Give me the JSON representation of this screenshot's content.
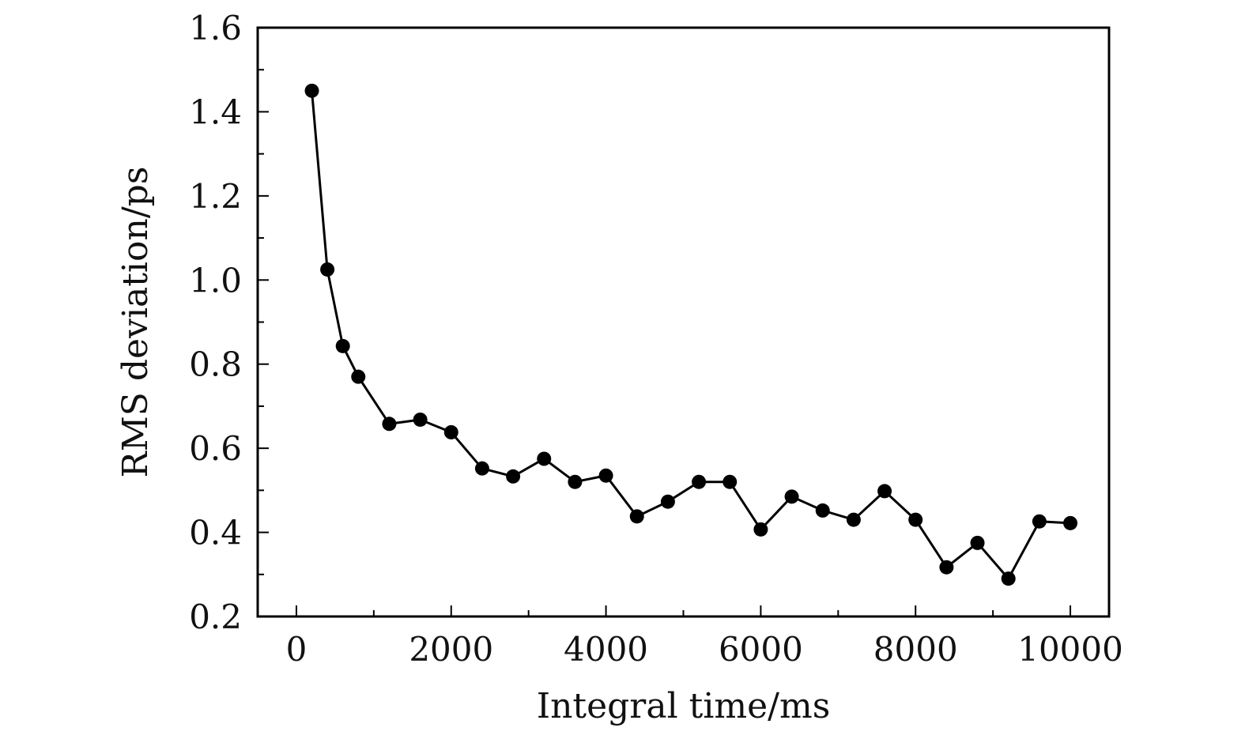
{
  "chart_data": {
    "type": "line",
    "xlabel": "Integral time/ms",
    "ylabel": "RMS deviation/ps",
    "xlim": [
      -500,
      10500
    ],
    "ylim": [
      0.2,
      1.6
    ],
    "x_ticks": [
      0,
      2000,
      4000,
      6000,
      8000,
      10000
    ],
    "x_tick_labels": [
      "0",
      "2000",
      "4000",
      "6000",
      "8000",
      "10000"
    ],
    "x_minor_ticks": [
      1000,
      3000,
      5000,
      7000,
      9000
    ],
    "y_ticks": [
      0.2,
      0.4,
      0.6,
      0.8,
      1.0,
      1.2,
      1.4,
      1.6
    ],
    "y_tick_labels": [
      "0.2",
      "0.4",
      "0.6",
      "0.8",
      "1.0",
      "1.2",
      "1.4",
      "1.6"
    ],
    "y_minor_ticks": [
      0.3,
      0.5,
      0.7,
      0.9,
      1.1,
      1.3,
      1.5
    ],
    "grid": false,
    "marker": "filled-circle",
    "color": "#000000",
    "series": [
      {
        "x": [
          200,
          400,
          600,
          800,
          1200,
          1600,
          2000,
          2400,
          2800,
          3200,
          3600,
          4000,
          4400,
          4800,
          5200,
          5600,
          6000,
          6400,
          6800,
          7200,
          7600,
          8000,
          8400,
          8800,
          9200,
          9600,
          10000
        ],
        "y": [
          1.45,
          1.025,
          0.843,
          0.77,
          0.658,
          0.668,
          0.638,
          0.552,
          0.533,
          0.575,
          0.52,
          0.535,
          0.438,
          0.473,
          0.52,
          0.52,
          0.407,
          0.485,
          0.452,
          0.43,
          0.498,
          0.43,
          0.317,
          0.375,
          0.29,
          0.426,
          0.422
        ]
      }
    ]
  }
}
